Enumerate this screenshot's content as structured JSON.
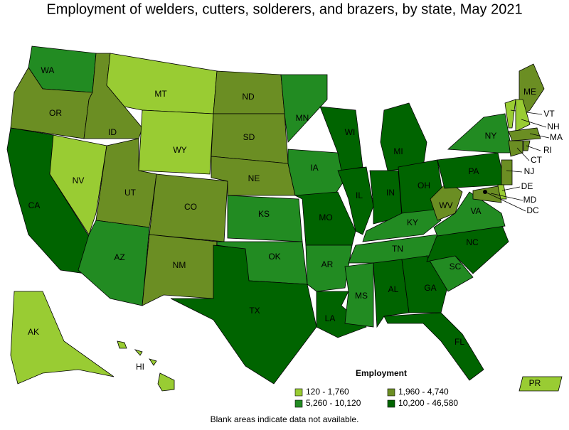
{
  "title": "Employment of welders, cutters, solderers, and brazers, by state, May 2021",
  "legend": {
    "title": "Employment",
    "items": [
      {
        "label": "120 - 1,760",
        "color": "#99cc33"
      },
      {
        "label": "1,960 - 4,740",
        "color": "#6b8e23"
      },
      {
        "label": "5,260 - 10,120",
        "color": "#228b22"
      },
      {
        "label": "10,200 - 46,580",
        "color": "#006400"
      }
    ]
  },
  "states": [
    {
      "label": "WA",
      "level": 2
    },
    {
      "label": "OR",
      "level": 1
    },
    {
      "label": "CA",
      "level": 3
    },
    {
      "label": "NV",
      "level": 0
    },
    {
      "label": "ID",
      "level": 1
    },
    {
      "label": "MT",
      "level": 0
    },
    {
      "label": "WY",
      "level": 0
    },
    {
      "label": "UT",
      "level": 1
    },
    {
      "label": "CO",
      "level": 1
    },
    {
      "label": "AZ",
      "level": 2
    },
    {
      "label": "NM",
      "level": 1
    },
    {
      "label": "ND",
      "level": 1
    },
    {
      "label": "SD",
      "level": 1
    },
    {
      "label": "NE",
      "level": 1
    },
    {
      "label": "KS",
      "level": 2
    },
    {
      "label": "OK",
      "level": 2
    },
    {
      "label": "TX",
      "level": 3
    },
    {
      "label": "MN",
      "level": 2
    },
    {
      "label": "IA",
      "level": 2
    },
    {
      "label": "MO",
      "level": 3
    },
    {
      "label": "AR",
      "level": 2
    },
    {
      "label": "LA",
      "level": 3
    },
    {
      "label": "WI",
      "level": 3
    },
    {
      "label": "IL",
      "level": 3
    },
    {
      "label": "MI",
      "level": 3
    },
    {
      "label": "IN",
      "level": 3
    },
    {
      "label": "OH",
      "level": 3
    },
    {
      "label": "KY",
      "level": 2
    },
    {
      "label": "TN",
      "level": 2
    },
    {
      "label": "MS",
      "level": 2
    },
    {
      "label": "AL",
      "level": 3
    },
    {
      "label": "GA",
      "level": 3
    },
    {
      "label": "FL",
      "level": 3
    },
    {
      "label": "SC",
      "level": 2
    },
    {
      "label": "NC",
      "level": 3
    },
    {
      "label": "VA",
      "level": 2
    },
    {
      "label": "WV",
      "level": 1
    },
    {
      "label": "PA",
      "level": 3
    },
    {
      "label": "NY",
      "level": 2
    },
    {
      "label": "ME",
      "level": 1
    },
    {
      "label": "VT",
      "level": 0
    },
    {
      "label": "NH",
      "level": 0
    },
    {
      "label": "MA",
      "level": 1
    },
    {
      "label": "CT",
      "level": 1
    },
    {
      "label": "RI",
      "level": 1
    },
    {
      "label": "NJ",
      "level": 1
    },
    {
      "label": "DE",
      "level": 0
    },
    {
      "label": "MD",
      "level": 1
    },
    {
      "label": "DC",
      "level": 1
    },
    {
      "label": "AK",
      "level": 0
    },
    {
      "label": "HI",
      "level": 0
    },
    {
      "label": "PR",
      "level": 0
    }
  ],
  "note": "Blank areas indicate data not available."
}
